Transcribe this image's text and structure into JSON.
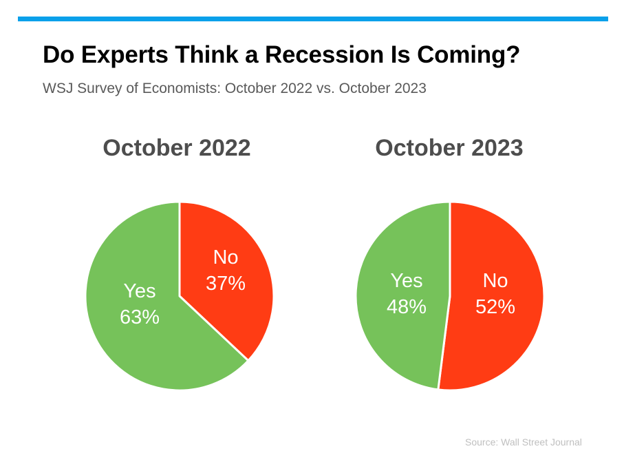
{
  "header": {
    "title": "Do Experts Think a Recession Is Coming?",
    "subtitle": "WSJ Survey of Economists: October 2022 vs. October 2023",
    "accent_color": "#0aa0ea"
  },
  "chart_data": [
    {
      "type": "pie",
      "title": "October 2022",
      "start": "top",
      "direction": "clockwise",
      "slices": [
        {
          "label": "No",
          "value": 37,
          "value_label": "37%",
          "color": "#ff3c14"
        },
        {
          "label": "Yes",
          "value": 63,
          "value_label": "63%",
          "color": "#76c25a"
        }
      ]
    },
    {
      "type": "pie",
      "title": "October 2023",
      "start": "top",
      "direction": "clockwise",
      "slices": [
        {
          "label": "No",
          "value": 52,
          "value_label": "52%",
          "color": "#ff3c14"
        },
        {
          "label": "Yes",
          "value": 48,
          "value_label": "48%",
          "color": "#76c25a"
        }
      ]
    }
  ],
  "footer": {
    "source": "Source: Wall Street Journal"
  }
}
